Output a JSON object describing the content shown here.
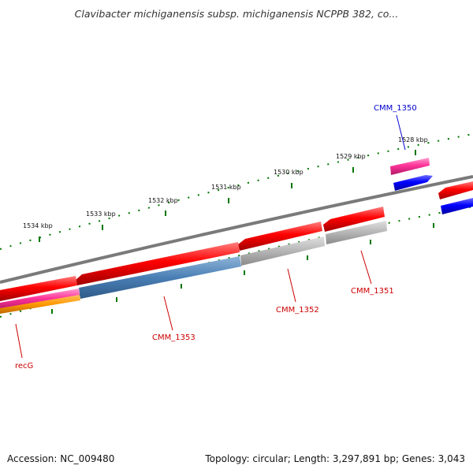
{
  "title": "Clavibacter michiganensis subsp. michiganensis NCPPB 382, co...",
  "footer": {
    "accession": "Accession: NC_009480",
    "topology": "Topology: circular; Length: 3,297,891 bp; Genes: 3,043"
  },
  "ruler_labels": [
    "1528 kbp",
    "1529 kbp",
    "1530 kbp",
    "1531 kbp",
    "1532 kbp",
    "1533 kbp",
    "1534 kbp"
  ],
  "gene_labels": [
    {
      "text": "CMM_1350",
      "color": "#0000cc"
    },
    {
      "text": "CMM_1351",
      "color": "#cc0000"
    },
    {
      "text": "CMM_1352",
      "color": "#cc0000"
    },
    {
      "text": "CMM_1353",
      "color": "#cc0000"
    },
    {
      "text": "recG",
      "color": "#cc0000"
    }
  ],
  "colors": {
    "cds_forward": "#0000ff",
    "cds_reverse": "#ff0000",
    "highlight": "#ff3399",
    "blast_blue": "#4a7fb5",
    "blast_gray": "#b5b5b5",
    "blast_orange": "#ff9900",
    "backbone": "#808080",
    "ticks": "#007700"
  }
}
